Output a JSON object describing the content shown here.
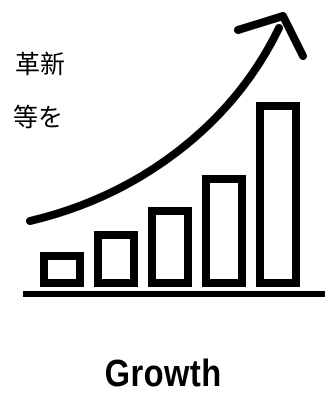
{
  "caption": {
    "line1": "革新",
    "line2": "等を"
  },
  "icon": {
    "name": "growth-bar-chart-arrow-icon",
    "color": "#000000",
    "bar_count": 5
  },
  "label": {
    "text": "Growth"
  }
}
